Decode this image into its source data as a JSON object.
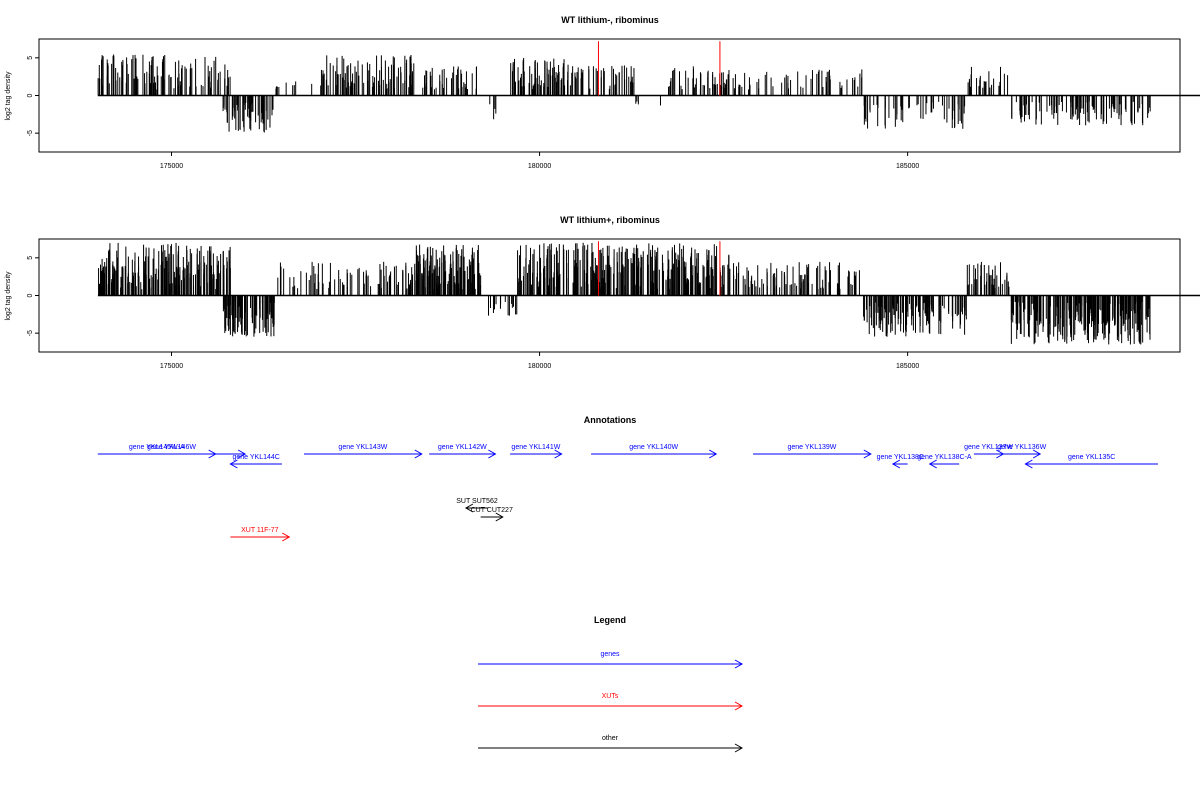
{
  "chart_data": [
    {
      "type": "bar",
      "title": "WT lithium-, ribominus",
      "ylabel": "log2 tag density",
      "xlim": [
        173200,
        188700
      ],
      "ylim": [
        -7.5,
        7.5
      ],
      "xticks": [
        175000,
        180000,
        185000
      ],
      "yticks": [
        5,
        0,
        -5
      ],
      "series": [
        {
          "color": "#000000",
          "segments": [
            {
              "x": [
                174000,
                175800
              ],
              "sign": 1,
              "max": 5.5,
              "density": 110
            },
            {
              "x": [
                175700,
                176400
              ],
              "sign": -1,
              "max": 5,
              "density": 60
            },
            {
              "x": [
                176400,
                177000
              ],
              "sign": 1,
              "max": 2,
              "density": 10
            },
            {
              "x": [
                177000,
                178300
              ],
              "sign": 1,
              "max": 5.5,
              "density": 90
            },
            {
              "x": [
                178400,
                179200
              ],
              "sign": 1,
              "max": 4,
              "density": 40
            },
            {
              "x": [
                179300,
                179500
              ],
              "sign": -1,
              "max": 3.5,
              "density": 4
            },
            {
              "x": [
                179600,
                180400
              ],
              "sign": 1,
              "max": 5,
              "density": 80
            },
            {
              "x": [
                180400,
                181300
              ],
              "sign": 1,
              "max": 4,
              "density": 45
            },
            {
              "x": [
                181300,
                181700
              ],
              "sign": -1,
              "max": 1.5,
              "density": 4
            },
            {
              "x": [
                181700,
                182600
              ],
              "sign": 1,
              "max": 4,
              "density": 50
            },
            {
              "x": [
                182600,
                184400
              ],
              "sign": 1,
              "max": 3.5,
              "density": 55
            },
            {
              "x": [
                184400,
                185800
              ],
              "sign": -1,
              "max": 4.5,
              "density": 55
            },
            {
              "x": [
                185800,
                186400
              ],
              "sign": 1,
              "max": 4,
              "density": 25
            },
            {
              "x": [
                186400,
                188300
              ],
              "sign": -1,
              "max": 4,
              "density": 110
            }
          ]
        },
        {
          "color": "#ff0000",
          "values": [
            [
              180800,
              7.2
            ],
            [
              182450,
              7.2
            ]
          ]
        }
      ]
    },
    {
      "type": "bar",
      "title": "WT lithium+, ribominus",
      "ylabel": "log2 tag density",
      "xlim": [
        173200,
        188700
      ],
      "ylim": [
        -7.5,
        7.5
      ],
      "xticks": [
        175000,
        180000,
        185000
      ],
      "yticks": [
        5,
        0,
        -5
      ],
      "series": [
        {
          "color": "#000000",
          "segments": [
            {
              "x": [
                174000,
                175800
              ],
              "sign": 1,
              "max": 7,
              "density": 220
            },
            {
              "x": [
                175700,
                176400
              ],
              "sign": -1,
              "max": 5.5,
              "density": 90
            },
            {
              "x": [
                176400,
                178400
              ],
              "sign": 1,
              "max": 4.5,
              "density": 80
            },
            {
              "x": [
                178300,
                179200
              ],
              "sign": 1,
              "max": 7,
              "density": 130
            },
            {
              "x": [
                179300,
                179700
              ],
              "sign": -1,
              "max": 3,
              "density": 15
            },
            {
              "x": [
                179700,
                182600
              ],
              "sign": 1,
              "max": 7,
              "density": 300
            },
            {
              "x": [
                182600,
                184400
              ],
              "sign": 1,
              "max": 4.5,
              "density": 90
            },
            {
              "x": [
                184400,
                185800
              ],
              "sign": -1,
              "max": 5.5,
              "density": 120
            },
            {
              "x": [
                185800,
                186400
              ],
              "sign": 1,
              "max": 4.5,
              "density": 40
            },
            {
              "x": [
                186400,
                188300
              ],
              "sign": -1,
              "max": 6.5,
              "density": 240
            }
          ]
        },
        {
          "color": "#ff0000",
          "values": [
            [
              180800,
              7.2
            ],
            [
              182450,
              7.2
            ]
          ]
        }
      ]
    }
  ],
  "annotations": {
    "title": "Annotations",
    "features": [
      {
        "label": "gene YKL146W",
        "x": [
          174000,
          176000
        ],
        "strand": "+",
        "row": 0,
        "color": "#0000ff"
      },
      {
        "label": "gene YKL145W-A",
        "x": [
          174000,
          175600
        ],
        "strand": "+",
        "row": 0,
        "color": "#0000ff"
      },
      {
        "label": "gene YKL144C",
        "x": [
          175800,
          176500
        ],
        "strand": "-",
        "row": 1,
        "color": "#0000ff"
      },
      {
        "label": "gene YKL143W",
        "x": [
          176800,
          178400
        ],
        "strand": "+",
        "row": 0,
        "color": "#0000ff"
      },
      {
        "label": "gene YKL142W",
        "x": [
          178500,
          179400
        ],
        "strand": "+",
        "row": 0,
        "color": "#0000ff"
      },
      {
        "label": "gene YKL141W",
        "x": [
          179600,
          180300
        ],
        "strand": "+",
        "row": 0,
        "color": "#0000ff"
      },
      {
        "label": "gene YKL140W",
        "x": [
          180700,
          182400
        ],
        "strand": "+",
        "row": 0,
        "color": "#0000ff"
      },
      {
        "label": "gene YKL139W",
        "x": [
          182900,
          184500
        ],
        "strand": "+",
        "row": 0,
        "color": "#0000ff"
      },
      {
        "label": "gene YKL138C",
        "x": [
          184800,
          185000
        ],
        "strand": "-",
        "row": 1,
        "color": "#0000ff"
      },
      {
        "label": "gene YKL138C-A",
        "x": [
          185300,
          185700
        ],
        "strand": "-",
        "row": 1,
        "color": "#0000ff"
      },
      {
        "label": "gene YKL137W",
        "x": [
          185900,
          186300
        ],
        "strand": "+",
        "row": 0,
        "color": "#0000ff"
      },
      {
        "label": "gene YKL136W",
        "x": [
          186300,
          186800
        ],
        "strand": "+",
        "row": 0,
        "color": "#0000ff"
      },
      {
        "label": "gene YKL135C",
        "x": [
          186600,
          188400
        ],
        "strand": "-",
        "row": 1,
        "color": "#0000ff"
      },
      {
        "label": "SUT SUT562",
        "x": [
          179000,
          179300
        ],
        "strand": "-",
        "row": 2,
        "color": "#000000"
      },
      {
        "label": "CUT CUT227",
        "x": [
          179200,
          179500
        ],
        "strand": "+",
        "row": 3,
        "color": "#000000"
      },
      {
        "label": "XUT 11F-77",
        "x": [
          175800,
          176600
        ],
        "strand": "+",
        "row": 4,
        "color": "#ff0000"
      }
    ]
  },
  "legend": {
    "title": "Legend",
    "items": [
      {
        "label": "genes",
        "color": "#0000ff"
      },
      {
        "label": "XUTs",
        "color": "#ff0000"
      },
      {
        "label": "other",
        "color": "#000000"
      }
    ]
  }
}
